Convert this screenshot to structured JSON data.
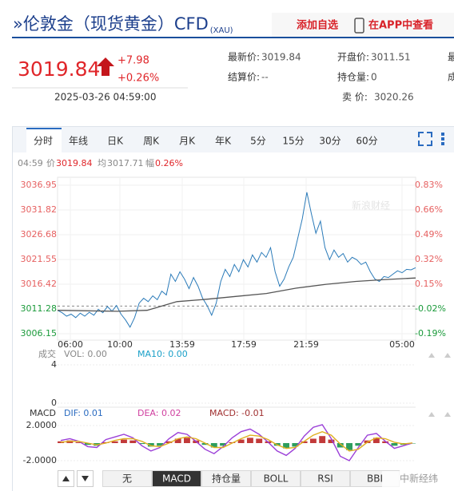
{
  "header": {
    "title": "»伦敦金（现货黄金）CFD",
    "code": "(XAU)",
    "add": "添加自选",
    "app": "在APP中查看"
  },
  "quote": {
    "price": "3019.84",
    "change": "+7.98",
    "pct": "+0.26%",
    "time": "2025-03-26 04:59:00"
  },
  "stats": [
    {
      "label": "最新价:",
      "value": "3019.84"
    },
    {
      "label": "开盘价:",
      "value": "3011.51"
    },
    {
      "label": "最"
    },
    {
      "label": "结算价:",
      "value": "--"
    },
    {
      "label": "持仓量:",
      "value": "0"
    },
    {
      "label": "成"
    },
    {
      "label": "卖  价:",
      "value": "3020.26"
    }
  ],
  "tabs": [
    "分时",
    "年线",
    "日K",
    "周K",
    "月K",
    "年K",
    "5分",
    "15分",
    "30分",
    "60分"
  ],
  "info": {
    "time": "04:59",
    "price_label": "价",
    "price": "3019.84",
    "avg_label": "均",
    "avg": "3017.71",
    "amp_label": "幅",
    "amp": "0.26%"
  },
  "chart_data": {
    "type": "line",
    "watermark": "新浪财经",
    "ylim": [
      3006.15,
      3036.95
    ],
    "yticks": [
      3036.95,
      3031.82,
      3026.68,
      3021.55,
      3016.42,
      3011.28,
      3006.15
    ],
    "y2lim": [
      -0.19,
      0.83
    ],
    "y2ticks": [
      {
        "value": 0.83,
        "label": "0.83%"
      },
      {
        "value": 0.66,
        "label": "0.66%"
      },
      {
        "value": 0.49,
        "label": "0.49%"
      },
      {
        "value": 0.32,
        "label": "0.32%"
      },
      {
        "value": 0.15,
        "label": "0.15%"
      },
      {
        "value": -0.02,
        "label": "-0.02%"
      },
      {
        "value": -0.19,
        "label": "-0.19%"
      }
    ],
    "x_labels": [
      "06:00",
      "10:00",
      "13:59",
      "17:59",
      "21:59",
      "05:00"
    ],
    "series": [
      {
        "color": "#2b7bb9",
        "values": [
          3011.0,
          3010.5,
          3009.8,
          3010.2,
          3009.5,
          3010.4,
          3009.8,
          3010.6,
          3010.0,
          3011.2,
          3010.5,
          3011.8,
          3010.8,
          3012.0,
          3010.2,
          3009.0,
          3007.5,
          3009.5,
          3012.5,
          3013.5,
          3012.8,
          3014.0,
          3013.2,
          3015.0,
          3014.2,
          3018.5,
          3017.0,
          3019.0,
          3017.5,
          3015.5,
          3017.8,
          3016.0,
          3013.5,
          3012.0,
          3010.0,
          3012.5,
          3017.0,
          3019.5,
          3018.0,
          3020.5,
          3019.0,
          3021.5,
          3020.0,
          3022.5,
          3021.0,
          3023.0,
          3022.0,
          3024.0,
          3019.0,
          3016.0,
          3017.5,
          3020.0,
          3022.0,
          3026.0,
          3030.0,
          3035.5,
          3031.0,
          3027.0,
          3029.5,
          3024.0,
          3021.5,
          3023.5,
          3022.0,
          3022.8,
          3021.0,
          3022.0,
          3021.5,
          3020.5,
          3021.0,
          3019.0,
          3017.5,
          3017.0,
          3018.0,
          3017.8,
          3018.5,
          3019.2,
          3018.8,
          3019.5,
          3019.4,
          3019.84
        ]
      },
      {
        "color": "#555555",
        "values": [
          3011.0,
          3010.9,
          3010.8,
          3011.0,
          3012.8,
          3013.3,
          3013.9,
          3014.5,
          3015.6,
          3016.4,
          3017.0,
          3017.4,
          3017.71
        ]
      }
    ]
  },
  "volume": {
    "label": "成交",
    "vol": "VOL: 0.00",
    "ma10": "MA10: 0.00",
    "ylim": [
      0,
      4
    ],
    "yticks": [
      4,
      0
    ]
  },
  "macd": {
    "label": "MACD",
    "dif_text": "DIF: 0.01",
    "dea_text": "DEA: 0.02",
    "macd_text": "MACD: -0.01",
    "ylim": [
      -3,
      3
    ],
    "yticks": [
      {
        "value": 2,
        "label": "2.0000"
      },
      {
        "value": -2,
        "label": "-2.0000"
      }
    ],
    "bars": [
      0.2,
      0.3,
      0.1,
      -0.2,
      -0.3,
      0.1,
      0.2,
      0.4,
      0.3,
      -0.1,
      -0.4,
      -0.3,
      0.2,
      0.5,
      0.6,
      0.3,
      -0.2,
      -0.5,
      -0.3,
      0.1,
      0.4,
      0.6,
      0.5,
      0.2,
      -0.3,
      -0.6,
      -0.4,
      0.2,
      0.5,
      0.8,
      0.4,
      -0.5,
      -0.8,
      -0.3,
      0.3,
      0.6,
      0.2,
      -0.3,
      -0.2,
      -0.01
    ],
    "dif": [
      0.3,
      0.5,
      0.2,
      -0.4,
      -0.5,
      0.4,
      0.7,
      1.0,
      0.6,
      -0.3,
      -0.9,
      -0.5,
      0.5,
      1.2,
      1.0,
      0.2,
      -0.7,
      -1.2,
      -0.4,
      0.6,
      1.3,
      1.6,
      1.0,
      0.1,
      -0.9,
      -1.4,
      -0.6,
      0.8,
      1.8,
      2.1,
      0.5,
      -1.5,
      -2.0,
      -0.5,
      0.9,
      1.1,
      0.2,
      -0.6,
      -0.3,
      0.01
    ],
    "dea": [
      0.1,
      0.2,
      0.2,
      0.0,
      -0.2,
      0.0,
      0.3,
      0.5,
      0.5,
      0.2,
      -0.3,
      -0.4,
      0.0,
      0.5,
      0.7,
      0.5,
      0.0,
      -0.5,
      -0.5,
      0.0,
      0.5,
      0.9,
      0.8,
      0.4,
      -0.2,
      -0.6,
      -0.5,
      0.2,
      0.9,
      1.3,
      0.9,
      -0.1,
      -0.9,
      -0.7,
      0.1,
      0.6,
      0.5,
      0.1,
      -0.1,
      0.02
    ]
  },
  "indicator_tabs": [
    "无",
    "MACD",
    "持仓量",
    "BOLL",
    "RSI",
    "BBI"
  ],
  "footer_watermark": "中新经纬"
}
